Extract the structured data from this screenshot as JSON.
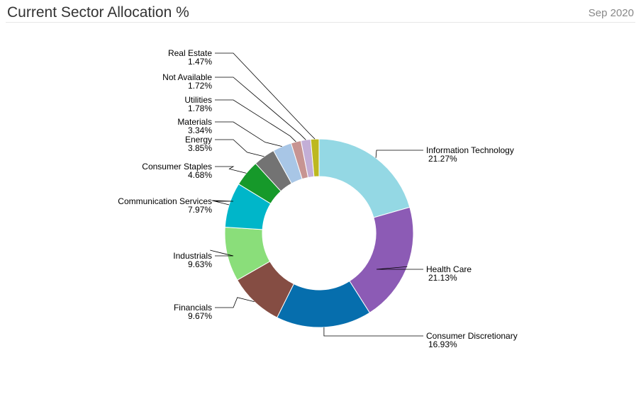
{
  "header": {
    "title": "Current Sector Allocation %",
    "date": "Sep 2020"
  },
  "chart_data": {
    "type": "pie",
    "style": "donut",
    "series": [
      {
        "label": "Information Technology",
        "value": 21.27,
        "display": "21.27%",
        "color": "#94d8e4"
      },
      {
        "label": "Health Care",
        "value": 21.13,
        "display": "21.13%",
        "color": "#8c5bb5"
      },
      {
        "label": "Consumer Discretionary",
        "value": 16.93,
        "display": "16.93%",
        "color": "#066ead"
      },
      {
        "label": "Financials",
        "value": 9.67,
        "display": "9.67%",
        "color": "#854d43"
      },
      {
        "label": "Industrials",
        "value": 9.63,
        "display": "9.63%",
        "color": "#8ade7a"
      },
      {
        "label": "Communication Services",
        "value": 7.97,
        "display": "7.97%",
        "color": "#00b6c9"
      },
      {
        "label": "Consumer Staples",
        "value": 4.68,
        "display": "4.68%",
        "color": "#16992a"
      },
      {
        "label": "Energy",
        "value": 3.85,
        "display": "3.85%",
        "color": "#737373"
      },
      {
        "label": "Materials",
        "value": 3.34,
        "display": "3.34%",
        "color": "#a8c6e6"
      },
      {
        "label": "Utilities",
        "value": 1.78,
        "display": "1.78%",
        "color": "#c79492"
      },
      {
        "label": "Not Available",
        "value": 1.72,
        "display": "1.72%",
        "color": "#c3aed6"
      },
      {
        "label": "Real Estate",
        "value": 1.47,
        "display": "1.47%",
        "color": "#bdb820"
      }
    ]
  }
}
